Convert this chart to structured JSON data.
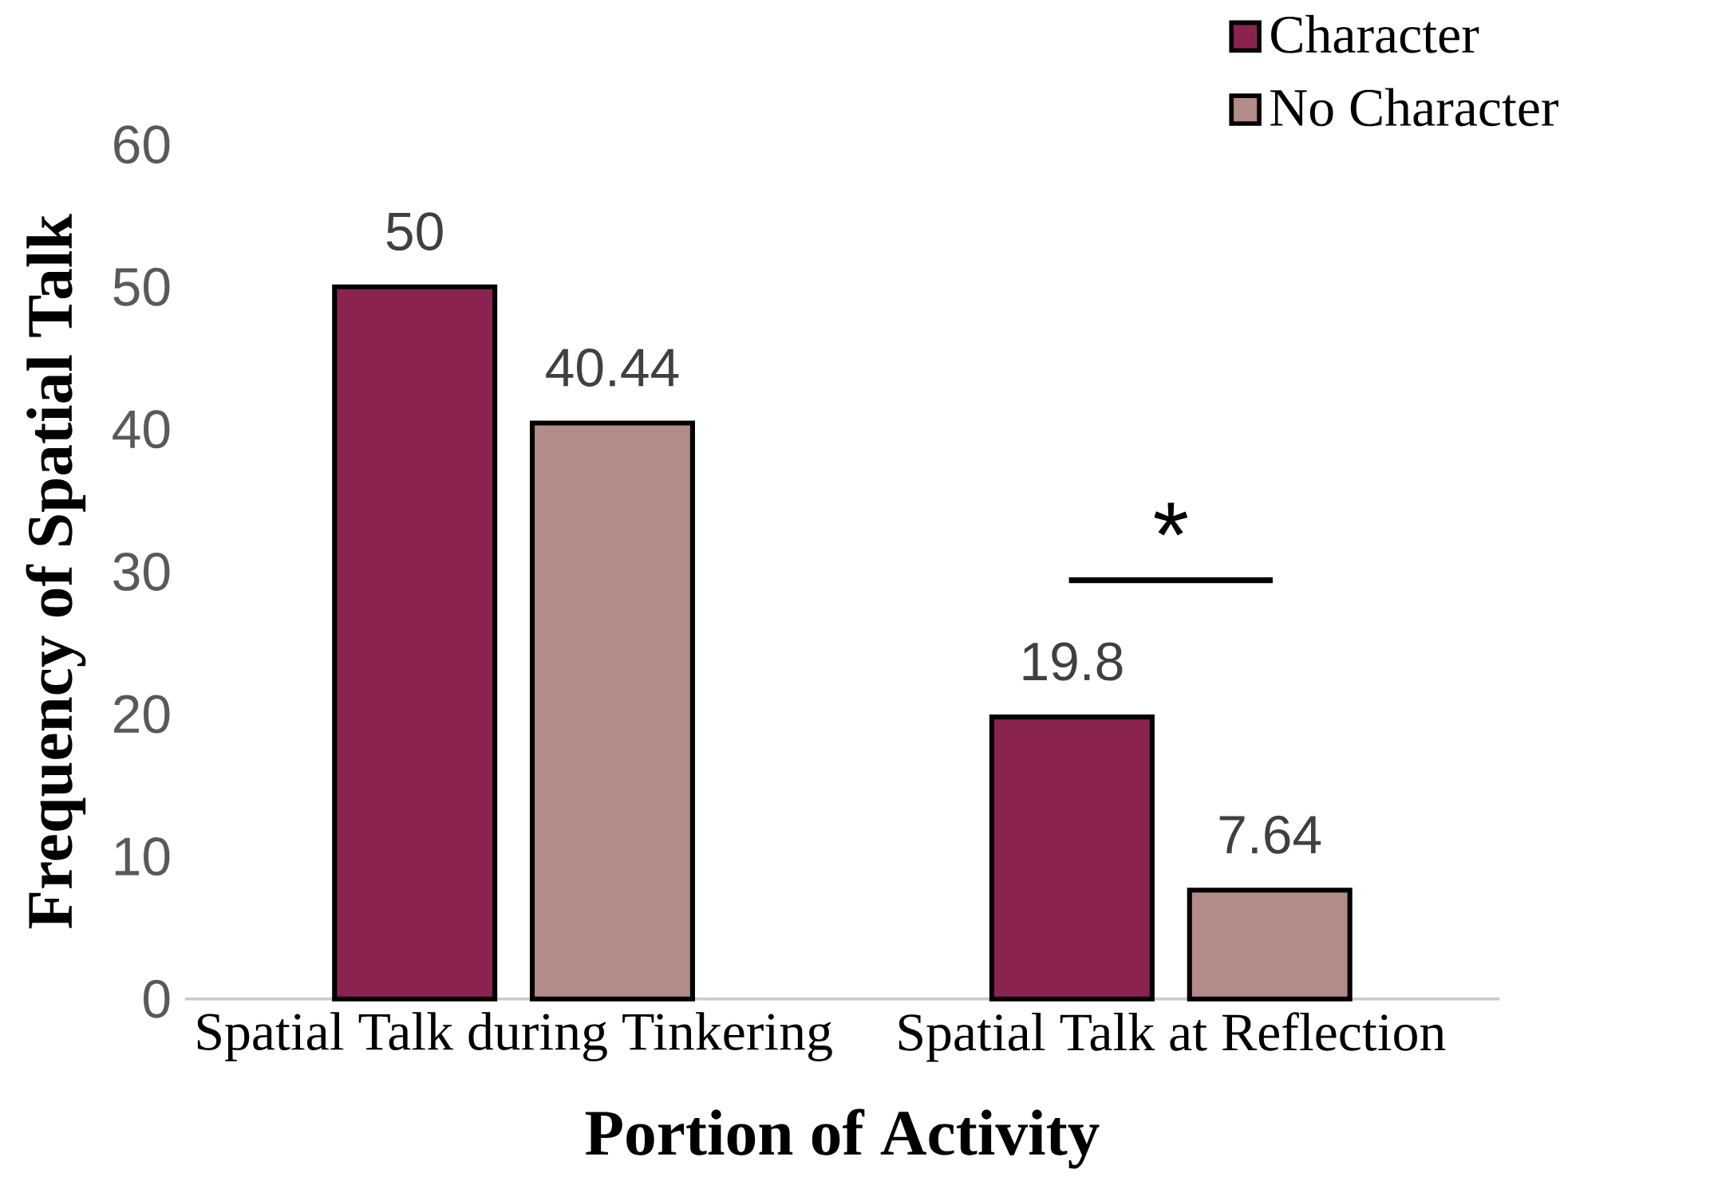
{
  "chart_data": {
    "type": "bar",
    "xlabel": "Portion of Activity",
    "ylabel": "Frequency of Spatial Talk",
    "categories": [
      "Spatial Talk during Tinkering",
      "Spatial Talk at Reflection"
    ],
    "series": [
      {
        "name": "Character",
        "color": "#8a2350",
        "values": [
          50,
          19.8
        ]
      },
      {
        "name": "No Character",
        "color": "#b38b88",
        "values": [
          40.44,
          7.64
        ]
      }
    ],
    "ylim": [
      0,
      60
    ],
    "yticks": [
      0,
      10,
      20,
      30,
      40,
      50,
      60
    ],
    "grid": false,
    "legend": "top right",
    "data_labels": true,
    "annotations": [
      "*"
    ]
  }
}
